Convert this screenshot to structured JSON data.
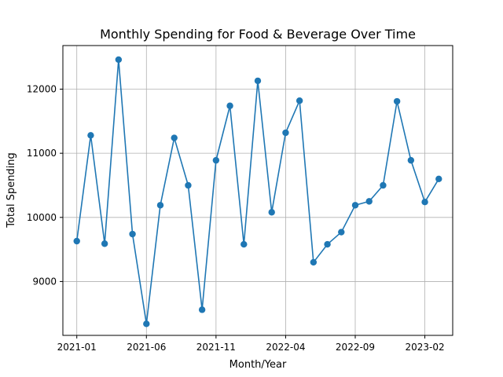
{
  "chart_data": {
    "type": "line",
    "title": "Monthly Spending for Food & Beverage Over Time",
    "xlabel": "Month/Year",
    "ylabel": "Total Spending",
    "x_ticks": [
      "2021-01",
      "2021-06",
      "2021-11",
      "2022-04",
      "2022-09",
      "2023-02"
    ],
    "y_ticks": [
      9000,
      10000,
      11000,
      12000
    ],
    "ylim": [
      8160,
      12680
    ],
    "xlim": [
      "2020-12",
      "2023-04"
    ],
    "grid": true,
    "marker": "circle",
    "series": [
      {
        "color": "#1f77b4",
        "x": [
          "2021-01",
          "2021-02",
          "2021-03",
          "2021-04",
          "2021-05",
          "2021-06",
          "2021-07",
          "2021-08",
          "2021-09",
          "2021-10",
          "2021-11",
          "2021-12",
          "2022-01",
          "2022-02",
          "2022-03",
          "2022-04",
          "2022-05",
          "2022-06",
          "2022-07",
          "2022-08",
          "2022-09",
          "2022-10",
          "2022-11",
          "2022-12",
          "2023-01",
          "2023-02",
          "2023-03"
        ],
        "values": [
          9630,
          11280,
          9590,
          12460,
          9740,
          8340,
          10190,
          11240,
          10500,
          8560,
          10890,
          11740,
          9580,
          12130,
          10080,
          11320,
          11820,
          9300,
          9580,
          9770,
          10190,
          10250,
          10500,
          11810,
          10890,
          10240,
          10600
        ]
      }
    ]
  }
}
